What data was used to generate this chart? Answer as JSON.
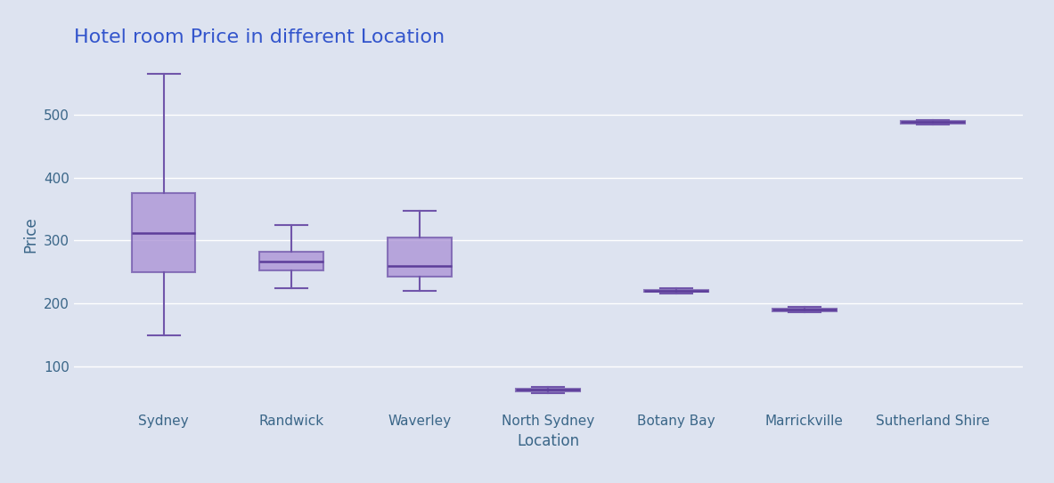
{
  "title": "Hotel room Price in different Location",
  "xlabel": "Location",
  "ylabel": "Price",
  "background_color": "#dde3f0",
  "plot_bg_color": "#dde3f0",
  "box_facecolor": "#a98fd4",
  "box_edgecolor": "#7055aa",
  "median_color": "#5c3d99",
  "whisker_color": "#7055aa",
  "cap_color": "#7055aa",
  "title_color": "#3355cc",
  "label_color": "#3a6688",
  "tick_color": "#3a6688",
  "categories": [
    "Sydney",
    "Randwick",
    "Waverley",
    "North Sydney",
    "Botany Bay",
    "Marrickville",
    "Sutherland Shire"
  ],
  "box_data": [
    {
      "whislo": 150,
      "q1": 250,
      "med": 312,
      "q3": 375,
      "whishi": 565
    },
    {
      "whislo": 225,
      "q1": 252,
      "med": 266,
      "q3": 282,
      "whishi": 325
    },
    {
      "whislo": 220,
      "q1": 243,
      "med": 260,
      "q3": 305,
      "whishi": 347
    },
    {
      "whislo": 58,
      "q1": 60,
      "med": 63,
      "q3": 65,
      "whishi": 67
    },
    {
      "whislo": 216,
      "q1": 218,
      "med": 220,
      "q3": 222,
      "whishi": 224
    },
    {
      "whislo": 186,
      "q1": 188,
      "med": 190,
      "q3": 192,
      "whishi": 194
    },
    {
      "whislo": 484,
      "q1": 486,
      "med": 488,
      "q3": 490,
      "whishi": 492
    }
  ],
  "ylim": [
    30,
    590
  ],
  "yticks": [
    100,
    200,
    300,
    400,
    500
  ],
  "figsize": [
    11.83,
    5.43
  ],
  "dpi": 100
}
